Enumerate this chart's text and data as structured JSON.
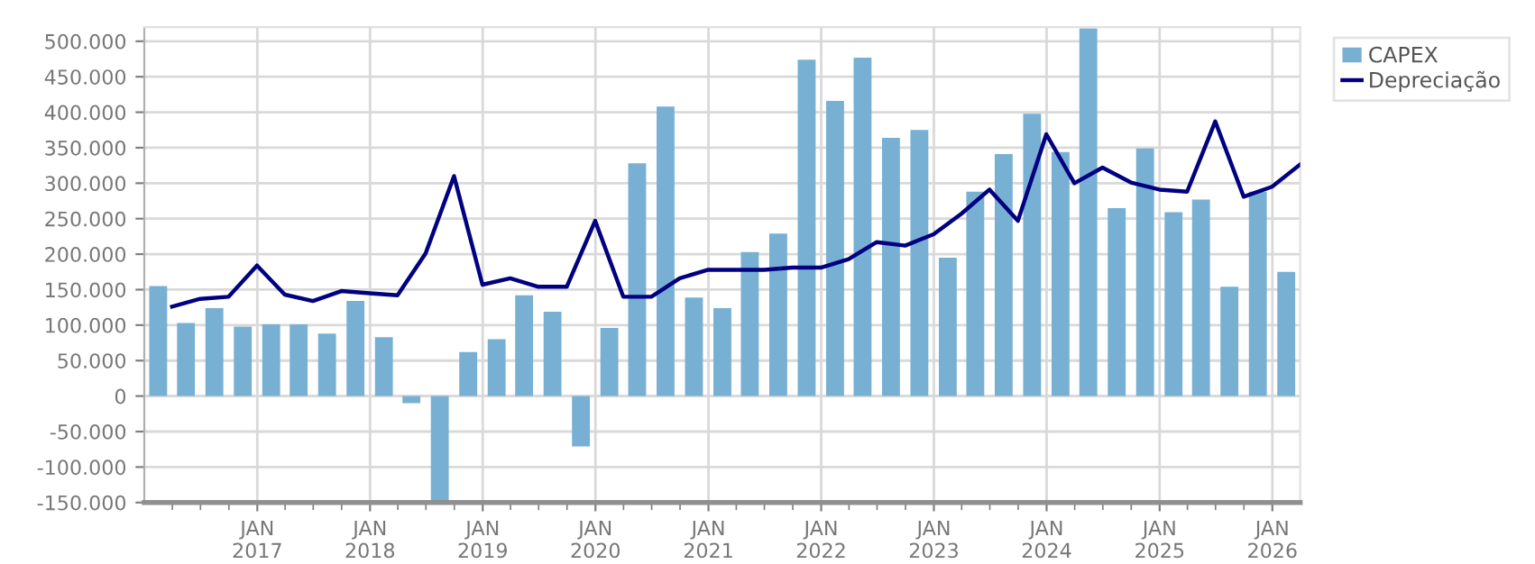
{
  "chart_data": {
    "type": "bar",
    "series": [
      {
        "name": "CAPEX",
        "color": "#78b0d3",
        "x": [
          "2016-02-15",
          "2016-05-15",
          "2016-08-15",
          "2016-11-15",
          "2017-02-15",
          "2017-05-15",
          "2017-08-15",
          "2017-11-15",
          "2018-02-15",
          "2018-05-15",
          "2018-08-15",
          "2018-11-15",
          "2019-02-15",
          "2019-05-15",
          "2019-08-15",
          "2019-11-15",
          "2020-02-15",
          "2020-05-15",
          "2020-08-15",
          "2020-11-15",
          "2021-02-15",
          "2021-05-15",
          "2021-08-15",
          "2021-11-15",
          "2022-02-15",
          "2022-05-15",
          "2022-08-15",
          "2022-11-15",
          "2023-02-15",
          "2023-05-15",
          "2023-08-15",
          "2023-11-15",
          "2024-02-15",
          "2024-05-15",
          "2024-08-15",
          "2024-11-15",
          "2025-02-15",
          "2025-05-15",
          "2025-08-15",
          "2025-11-15",
          "2026-02-15"
        ],
        "values": [
          155000,
          103000,
          124000,
          98000,
          101000,
          101000,
          88000,
          134000,
          83000,
          -10000,
          -150000,
          62000,
          80000,
          142000,
          119000,
          -71000,
          96000,
          328000,
          408000,
          139000,
          124000,
          203000,
          229000,
          474000,
          416000,
          477000,
          364000,
          375000,
          195000,
          288000,
          341000,
          398000,
          344000,
          518000,
          265000,
          349000,
          259000,
          277000,
          154000,
          288000,
          175000
        ]
      },
      {
        "name": "Depreciação",
        "type": "line",
        "color": "#000080",
        "x": [
          "2016-03-31",
          "2016-06-30",
          "2016-09-30",
          "2016-12-31",
          "2017-03-31",
          "2017-06-30",
          "2017-09-30",
          "2017-12-31",
          "2018-03-31",
          "2018-06-30",
          "2018-09-30",
          "2018-12-31",
          "2019-03-31",
          "2019-06-30",
          "2019-09-30",
          "2019-12-31",
          "2020-03-31",
          "2020-06-30",
          "2020-09-30",
          "2020-12-31",
          "2021-03-31",
          "2021-06-30",
          "2021-09-30",
          "2021-12-31",
          "2022-03-31",
          "2022-06-30",
          "2022-09-30",
          "2022-12-31",
          "2023-03-31",
          "2023-06-30",
          "2023-09-30",
          "2023-12-31",
          "2024-03-31",
          "2024-06-30",
          "2024-09-30",
          "2024-12-31",
          "2025-03-31",
          "2025-06-30",
          "2025-09-30",
          "2025-12-31",
          "2026-03-31"
        ],
        "values": [
          126000,
          137000,
          140000,
          184000,
          143000,
          134000,
          148000,
          145000,
          142000,
          201000,
          310000,
          157000,
          166000,
          154000,
          154000,
          247000,
          140000,
          140000,
          166000,
          178000,
          178000,
          178000,
          181000,
          181000,
          193000,
          217000,
          212000,
          228000,
          257000,
          291000,
          247000,
          369000,
          300000,
          322000,
          301000,
          291000,
          288000,
          387000,
          281000,
          295000,
          326000
        ]
      }
    ],
    "xlim": [
      "2016-01-01",
      "2026-04-01"
    ],
    "xticks": [
      {
        "value": "2016-04-01",
        "label": null
      },
      {
        "value": "2016-07-01",
        "label": null
      },
      {
        "value": "2016-10-01",
        "label": null
      },
      {
        "value": "2017-01-01",
        "label": "JAN\n2017"
      },
      {
        "value": "2017-04-01",
        "label": null
      },
      {
        "value": "2017-07-01",
        "label": null
      },
      {
        "value": "2017-10-01",
        "label": null
      },
      {
        "value": "2018-01-01",
        "label": "JAN\n2018"
      },
      {
        "value": "2018-04-01",
        "label": null
      },
      {
        "value": "2018-07-01",
        "label": null
      },
      {
        "value": "2018-10-01",
        "label": null
      },
      {
        "value": "2019-01-01",
        "label": "JAN\n2019"
      },
      {
        "value": "2019-04-01",
        "label": null
      },
      {
        "value": "2019-07-01",
        "label": null
      },
      {
        "value": "2019-10-01",
        "label": null
      },
      {
        "value": "2020-01-01",
        "label": "JAN\n2020"
      },
      {
        "value": "2020-04-01",
        "label": null
      },
      {
        "value": "2020-07-01",
        "label": null
      },
      {
        "value": "2020-10-01",
        "label": null
      },
      {
        "value": "2021-01-01",
        "label": "JAN\n2021"
      },
      {
        "value": "2021-04-01",
        "label": null
      },
      {
        "value": "2021-07-01",
        "label": null
      },
      {
        "value": "2021-10-01",
        "label": null
      },
      {
        "value": "2022-01-01",
        "label": "JAN\n2022"
      },
      {
        "value": "2022-04-01",
        "label": null
      },
      {
        "value": "2022-07-01",
        "label": null
      },
      {
        "value": "2022-10-01",
        "label": null
      },
      {
        "value": "2023-01-01",
        "label": "JAN\n2023"
      },
      {
        "value": "2023-04-01",
        "label": null
      },
      {
        "value": "2023-07-01",
        "label": null
      },
      {
        "value": "2023-10-01",
        "label": null
      },
      {
        "value": "2024-01-01",
        "label": "JAN\n2024"
      },
      {
        "value": "2024-04-01",
        "label": null
      },
      {
        "value": "2024-07-01",
        "label": null
      },
      {
        "value": "2024-10-01",
        "label": null
      },
      {
        "value": "2025-01-01",
        "label": "JAN\n2025"
      },
      {
        "value": "2025-04-01",
        "label": null
      },
      {
        "value": "2025-07-01",
        "label": null
      },
      {
        "value": "2025-10-01",
        "label": null
      },
      {
        "value": "2026-01-01",
        "label": "JAN\n2026"
      }
    ],
    "ylim": [
      -150000,
      520000
    ],
    "yticks": [
      {
        "value": -150000,
        "label": "-150.000"
      },
      {
        "value": -100000,
        "label": "-100.000"
      },
      {
        "value": -50000,
        "label": "-50.000"
      },
      0,
      {
        "value": 50000,
        "label": "50.000"
      },
      {
        "value": 100000,
        "label": "100.000"
      },
      {
        "value": 150000,
        "label": "150.000"
      },
      {
        "value": 200000,
        "label": "200.000"
      },
      {
        "value": 250000,
        "label": "250.000"
      },
      {
        "value": 300000,
        "label": "300.000"
      },
      {
        "value": 350000,
        "label": "350.000"
      },
      {
        "value": 400000,
        "label": "400.000"
      },
      {
        "value": 450000,
        "label": "450.000"
      },
      {
        "value": 500000,
        "label": "500.000"
      }
    ],
    "grid": true,
    "legend": "top right",
    "marker": "none",
    "line_style": "solid"
  }
}
